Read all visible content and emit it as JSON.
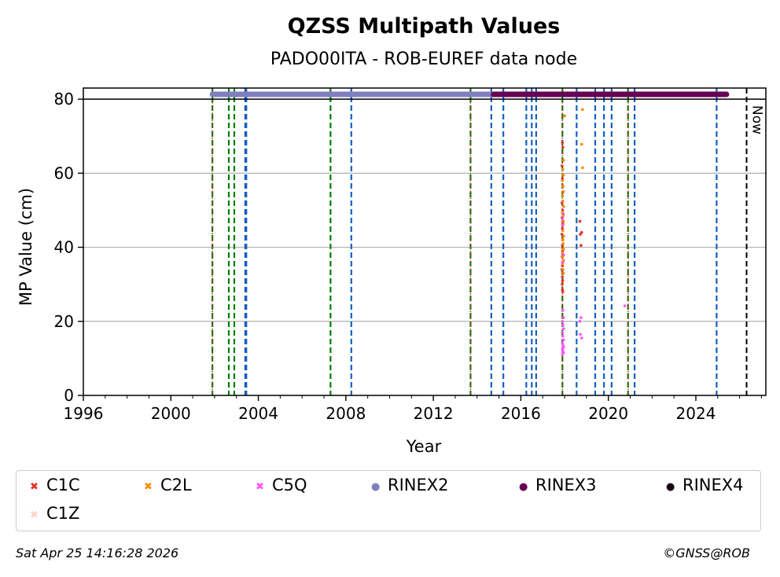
{
  "chart_data": {
    "type": "scatter",
    "title": "QZSS Multipath Values",
    "subtitle": "PADO00ITA - ROB-EUREF data node",
    "xlabel": "Year",
    "ylabel": "MP Value (cm)",
    "xlim": [
      1996.0,
      2027.2
    ],
    "ylim": [
      0,
      83
    ],
    "xticks": [
      1996,
      2000,
      2004,
      2008,
      2012,
      2016,
      2020,
      2024
    ],
    "yticks": [
      0,
      20,
      40,
      60,
      80
    ],
    "grid": "horizontal",
    "reference_line": {
      "y": 80
    },
    "now_line": {
      "x": 2026.32,
      "label": "Now"
    },
    "green_lines": [
      2001.9,
      2002.65,
      2002.9,
      2007.3,
      2013.7,
      2017.9,
      2020.9
    ],
    "blue_lines": [
      2003.4,
      2003.45,
      2008.25,
      2014.65,
      2015.2,
      2016.25,
      2016.5,
      2016.7,
      2018.55,
      2019.4,
      2019.8,
      2020.15,
      2021.2,
      2024.95
    ],
    "red_dotted_lines": [
      2001.9,
      2013.7,
      2017.9,
      2020.9
    ],
    "rinex_bars": [
      {
        "name": "RINEX2",
        "color": "#7f7fbf",
        "x0": 2001.9,
        "x1": 2015.1,
        "y": 81.3
      },
      {
        "name": "RINEX3",
        "color": "#660055",
        "x0": 2014.75,
        "x1": 2025.4,
        "y": 81.3
      }
    ],
    "series": [
      {
        "name": "C1C",
        "color": "#e8302a",
        "points": [
          [
            2017.9,
            68.3
          ],
          [
            2017.92,
            67.0
          ],
          [
            2017.88,
            62.0
          ],
          [
            2017.9,
            58.5
          ],
          [
            2017.92,
            55.0
          ],
          [
            2017.88,
            52.0
          ],
          [
            2017.91,
            50.0
          ],
          [
            2017.89,
            48.0
          ],
          [
            2017.92,
            46.5
          ],
          [
            2017.9,
            45.0
          ],
          [
            2017.88,
            43.5
          ],
          [
            2017.92,
            42.0
          ],
          [
            2017.9,
            40.5
          ],
          [
            2017.91,
            39.0
          ],
          [
            2017.89,
            37.5
          ],
          [
            2017.92,
            36.0
          ],
          [
            2017.9,
            35.0
          ],
          [
            2017.88,
            34.0
          ],
          [
            2017.92,
            33.0
          ],
          [
            2017.9,
            32.0
          ],
          [
            2017.91,
            31.0
          ],
          [
            2017.89,
            30.0
          ],
          [
            2017.9,
            28.5
          ],
          [
            2017.92,
            28.0
          ],
          [
            2018.7,
            47.0
          ],
          [
            2018.78,
            44.0
          ],
          [
            2018.72,
            43.5
          ],
          [
            2018.75,
            40.5
          ]
        ]
      },
      {
        "name": "C2L",
        "color": "#ff8c00",
        "points": [
          [
            2018.0,
            75.5
          ],
          [
            2018.82,
            77.2
          ],
          [
            2018.78,
            67.8
          ],
          [
            2017.95,
            63.5
          ],
          [
            2018.82,
            61.5
          ],
          [
            2017.92,
            61.0
          ],
          [
            2017.95,
            59.5
          ],
          [
            2017.9,
            58.0
          ],
          [
            2017.93,
            56.5
          ],
          [
            2017.95,
            55.0
          ],
          [
            2017.9,
            54.0
          ],
          [
            2017.92,
            52.5
          ],
          [
            2017.96,
            51.0
          ],
          [
            2017.9,
            49.5
          ],
          [
            2017.93,
            48.5
          ],
          [
            2017.95,
            47.0
          ],
          [
            2017.9,
            46.0
          ],
          [
            2017.92,
            44.5
          ],
          [
            2017.96,
            43.0
          ],
          [
            2017.9,
            42.0
          ],
          [
            2017.93,
            41.0
          ],
          [
            2017.95,
            39.5
          ],
          [
            2017.9,
            38.5
          ],
          [
            2017.92,
            37.5
          ],
          [
            2017.95,
            36.5
          ],
          [
            2017.9,
            35.5
          ],
          [
            2017.93,
            34.0
          ],
          [
            2017.95,
            33.0
          ]
        ]
      },
      {
        "name": "C5Q",
        "color": "#ff55ff",
        "points": [
          [
            2017.95,
            49.0
          ],
          [
            2017.9,
            47.5
          ],
          [
            2017.93,
            46.0
          ],
          [
            2017.96,
            38.0
          ],
          [
            2017.9,
            36.0
          ],
          [
            2017.92,
            23.0
          ],
          [
            2017.95,
            21.0
          ],
          [
            2017.9,
            20.0
          ],
          [
            2017.93,
            19.0
          ],
          [
            2017.96,
            18.0
          ],
          [
            2017.9,
            17.0
          ],
          [
            2017.92,
            16.0
          ],
          [
            2017.95,
            15.0
          ],
          [
            2017.9,
            14.0
          ],
          [
            2017.93,
            13.5
          ],
          [
            2017.96,
            13.0
          ],
          [
            2017.9,
            12.5
          ],
          [
            2017.92,
            12.0
          ],
          [
            2017.95,
            11.5
          ],
          [
            2017.9,
            11.0
          ],
          [
            2018.75,
            21.0
          ],
          [
            2018.7,
            20.0
          ],
          [
            2018.72,
            16.5
          ],
          [
            2018.78,
            15.5
          ],
          [
            2020.75,
            24.2
          ]
        ]
      }
    ]
  },
  "legend": {
    "items": [
      {
        "label": "C1C",
        "color": "#e8302a",
        "marker": "x"
      },
      {
        "label": "C2L",
        "color": "#ff8c00",
        "marker": "x"
      },
      {
        "label": "C5Q",
        "color": "#ff55ff",
        "marker": "x"
      },
      {
        "label": "RINEX2",
        "color": "#7f7fbf",
        "marker": "dot"
      },
      {
        "label": "RINEX3",
        "color": "#660055",
        "marker": "dot"
      },
      {
        "label": "RINEX4",
        "color": "#1a0014",
        "marker": "dot"
      },
      {
        "label": "C1Z",
        "color": "#ffd2c8",
        "marker": "x"
      }
    ]
  },
  "footer": {
    "timestamp": "Sat Apr 25 14:16:28 2026",
    "credit": "©GNSS@ROB"
  }
}
